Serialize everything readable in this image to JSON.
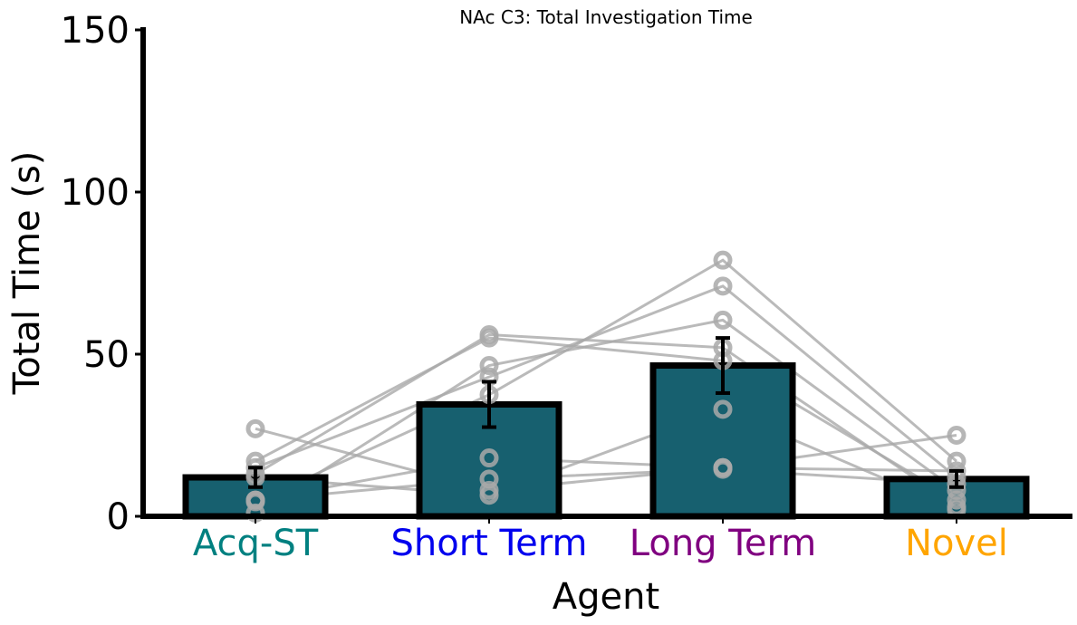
{
  "chart_data": {
    "type": "bar",
    "title": "NAc C3: Total Investigation Time",
    "xlabel": "Agent",
    "ylabel": "Total Time (s)",
    "ylim": [
      0,
      150
    ],
    "yticks": [
      "0",
      "50",
      "100",
      "150"
    ],
    "categories": [
      "Acq-ST",
      "Short Term",
      "Long Term",
      "Novel"
    ],
    "category_colors": [
      "#008080",
      "#0000ee",
      "#800080",
      "#ffa500"
    ],
    "values": [
      12,
      34.5,
      46.5,
      11.5
    ],
    "error": [
      3,
      7,
      8.5,
      2.5
    ],
    "bar_color": "#17606f",
    "edge_color": "#000000",
    "subject_color": "#a9a9a9",
    "subjects": [
      [
        27,
        8,
        15,
        25
      ],
      [
        17,
        55,
        48,
        5
      ],
      [
        15,
        43,
        71,
        12
      ],
      [
        13,
        56,
        52,
        3
      ],
      [
        5,
        18,
        15,
        14
      ],
      [
        5,
        11.5,
        14.5,
        10
      ],
      [
        4.5,
        37.5,
        79,
        17
      ],
      [
        1,
        46.5,
        60.5,
        8
      ],
      [
        12,
        6.5,
        33,
        2
      ]
    ]
  }
}
